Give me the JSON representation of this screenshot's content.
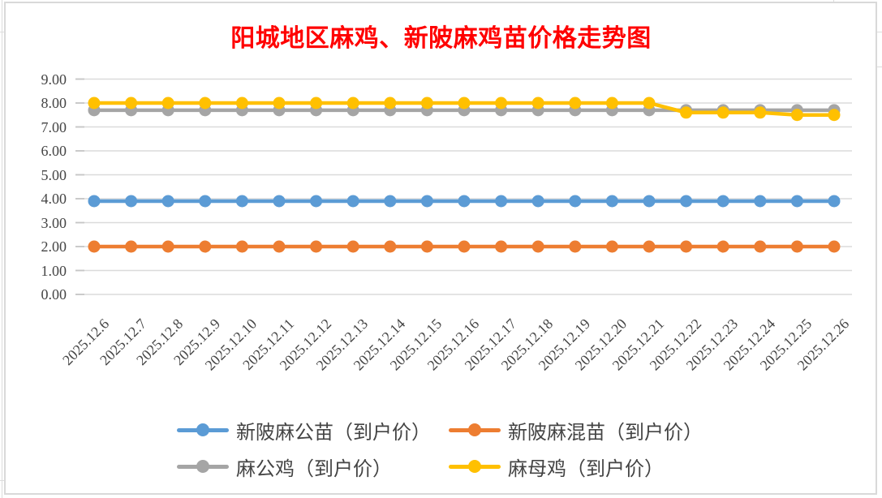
{
  "chart_data": {
    "type": "line",
    "title": "阳城地区麻鸡、新陂麻鸡苗价格走势图",
    "title_color": "#ff0000",
    "categories": [
      "2025.12.6",
      "2025.12.7",
      "2025.12.8",
      "2025.12.9",
      "2025.12.10",
      "2025.12.11",
      "2025.12.12",
      "2025.12.13",
      "2025.12.14",
      "2025.12.15",
      "2025.12.16",
      "2025.12.17",
      "2025.12.18",
      "2025.12.19",
      "2025.12.20",
      "2025.12.21",
      "2025.12.22",
      "2025.12.23",
      "2025.12.24",
      "2025.12.25",
      "2025.12.26"
    ],
    "series": [
      {
        "name": "新陂麻公苗（到户价）",
        "color": "#5B9BD5",
        "values": [
          3.9,
          3.9,
          3.9,
          3.9,
          3.9,
          3.9,
          3.9,
          3.9,
          3.9,
          3.9,
          3.9,
          3.9,
          3.9,
          3.9,
          3.9,
          3.9,
          3.9,
          3.9,
          3.9,
          3.9,
          3.9
        ]
      },
      {
        "name": "新陂麻混苗（到户价）",
        "color": "#ED7D31",
        "values": [
          2.0,
          2.0,
          2.0,
          2.0,
          2.0,
          2.0,
          2.0,
          2.0,
          2.0,
          2.0,
          2.0,
          2.0,
          2.0,
          2.0,
          2.0,
          2.0,
          2.0,
          2.0,
          2.0,
          2.0,
          2.0
        ]
      },
      {
        "name": "麻公鸡（到户价）",
        "color": "#A5A5A5",
        "values": [
          7.7,
          7.7,
          7.7,
          7.7,
          7.7,
          7.7,
          7.7,
          7.7,
          7.7,
          7.7,
          7.7,
          7.7,
          7.7,
          7.7,
          7.7,
          7.7,
          7.7,
          7.7,
          7.7,
          7.7,
          7.7
        ]
      },
      {
        "name": "麻母鸡（到户价）",
        "color": "#FFC000",
        "values": [
          8.0,
          8.0,
          8.0,
          8.0,
          8.0,
          8.0,
          8.0,
          8.0,
          8.0,
          8.0,
          8.0,
          8.0,
          8.0,
          8.0,
          8.0,
          8.0,
          7.6,
          7.6,
          7.6,
          7.5,
          7.5
        ]
      }
    ],
    "y_ticks": [
      "0.00",
      "1.00",
      "2.00",
      "3.00",
      "4.00",
      "5.00",
      "6.00",
      "7.00",
      "8.00",
      "9.00"
    ],
    "ylim": [
      0,
      9
    ],
    "xlabel": "",
    "ylabel": "",
    "grid": true,
    "gridline_color": "#dbdbdb",
    "axis_text_color": "#454545",
    "legend_position": "bottom"
  }
}
